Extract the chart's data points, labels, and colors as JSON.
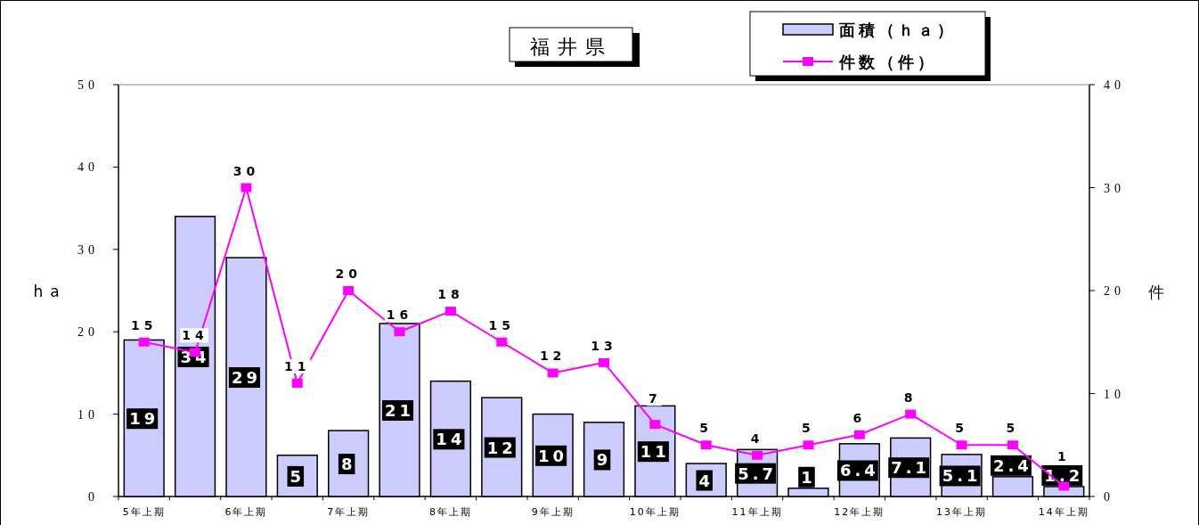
{
  "chart_data": {
    "type": "bar",
    "title": "福井県",
    "ylabel": "ha",
    "y2label": "件",
    "categories": [
      "5年上期",
      null,
      "6年上期",
      null,
      "7年上期",
      null,
      "8年上期",
      null,
      "9年上期",
      null,
      "10年上期",
      null,
      "11年上期",
      null,
      "12年上期",
      null,
      "13年上期",
      null,
      "14年上期"
    ],
    "series": [
      {
        "name": "面積（ｈａ）",
        "color": "#ccccff",
        "values": [
          19,
          34,
          29,
          5,
          8,
          21,
          14,
          12,
          10,
          9,
          11,
          4,
          5.7,
          1,
          6.4,
          7.1,
          5.1,
          2.4,
          1.2
        ]
      },
      {
        "name": "件数（件）",
        "type": "line",
        "axis": "y2",
        "color": "#ff00ff",
        "values": [
          15,
          14,
          30,
          11,
          20,
          16,
          18,
          15,
          12,
          13,
          7,
          5,
          4,
          5,
          6,
          8,
          5,
          5,
          1
        ]
      }
    ],
    "marker": "square",
    "line_style": "solid",
    "ylim": [
      0,
      50
    ],
    "yticks": [
      0,
      10,
      20,
      30,
      40,
      50
    ],
    "y2lim": [
      0,
      40
    ],
    "y2ticks": [
      0,
      10,
      20,
      30,
      40
    ],
    "data_labels": true,
    "legend": "top right"
  }
}
